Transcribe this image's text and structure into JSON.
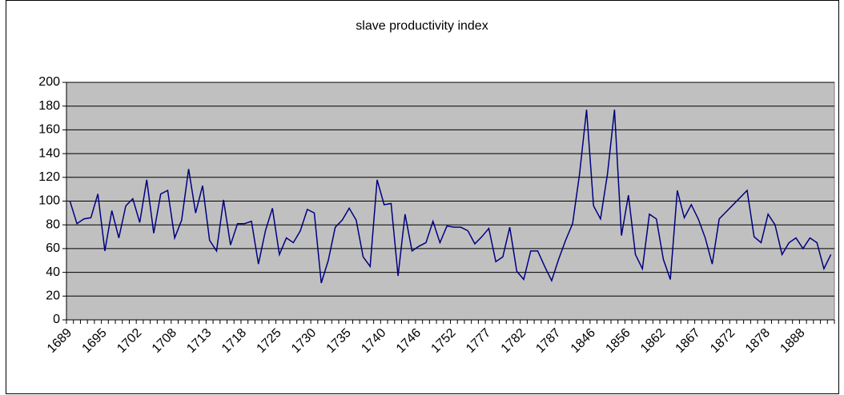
{
  "chart_data": {
    "type": "line",
    "title": "slave productivity index",
    "categories": [
      "1689",
      null,
      null,
      null,
      null,
      "1695",
      null,
      null,
      null,
      null,
      "1702",
      null,
      null,
      null,
      null,
      "1708",
      null,
      null,
      null,
      null,
      "1713",
      null,
      null,
      null,
      null,
      "1718",
      null,
      null,
      null,
      null,
      "1725",
      null,
      null,
      null,
      null,
      "1730",
      null,
      null,
      null,
      null,
      "1735",
      null,
      null,
      null,
      null,
      "1740",
      null,
      null,
      null,
      null,
      "1746",
      null,
      null,
      null,
      null,
      "1752",
      null,
      null,
      null,
      null,
      "1777",
      null,
      null,
      null,
      null,
      "1782",
      null,
      null,
      null,
      null,
      "1787",
      null,
      null,
      null,
      null,
      "1846",
      null,
      null,
      null,
      null,
      "1856",
      null,
      null,
      null,
      null,
      "1862",
      null,
      null,
      null,
      null,
      "1867",
      null,
      null,
      null,
      null,
      "1872",
      null,
      null,
      null,
      null,
      "1878",
      null,
      null,
      null,
      null,
      "1888",
      null,
      null,
      null,
      null
    ],
    "series": [
      {
        "color": "#000080",
        "values": [
          100,
          81,
          85,
          86,
          106,
          58,
          92,
          69,
          96,
          102,
          82,
          118,
          73,
          106,
          109,
          69,
          84,
          127,
          90,
          113,
          67,
          58,
          101,
          63,
          81,
          81,
          83,
          47,
          75,
          94,
          55,
          69,
          65,
          75,
          93,
          90,
          31,
          50,
          78,
          84,
          94,
          84,
          53,
          45,
          118,
          97,
          98,
          37,
          89,
          58,
          62,
          65,
          83,
          65,
          79,
          78,
          78,
          75,
          64,
          70,
          77,
          49,
          53,
          78,
          41,
          34,
          58,
          58,
          45,
          33,
          51,
          67,
          81,
          123,
          177,
          96,
          85,
          123,
          177,
          71,
          105,
          55,
          43,
          89,
          85,
          51,
          34,
          109,
          86,
          97,
          85,
          69,
          47,
          85,
          91,
          97,
          103,
          109,
          70,
          65,
          89,
          80,
          55,
          65,
          69,
          60,
          69,
          65,
          43,
          55
        ]
      }
    ],
    "ylim": [
      0,
      200
    ],
    "yticks": [
      0,
      20,
      40,
      60,
      80,
      100,
      120,
      140,
      160,
      180,
      200
    ],
    "grid": true,
    "plot_background": "#c0c0c0"
  }
}
